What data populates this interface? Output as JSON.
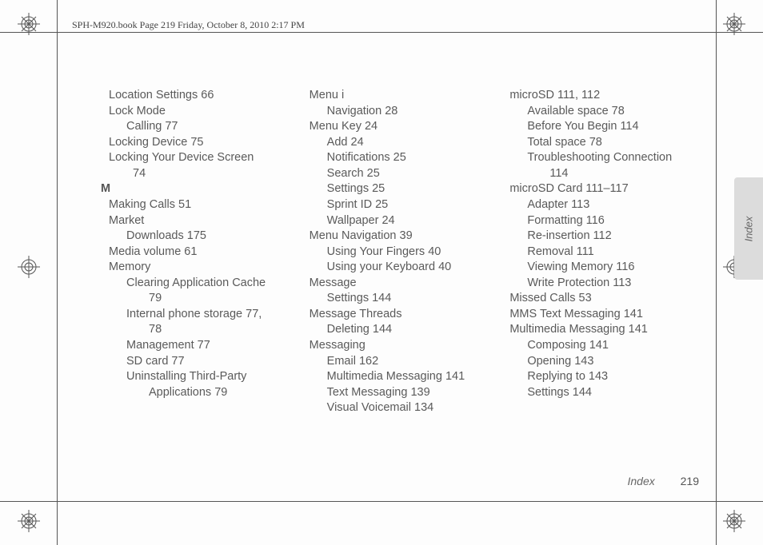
{
  "header": "SPH-M920.book  Page 219  Friday, October 8, 2010  2:17 PM",
  "sideTab": "Index",
  "footer": {
    "label": "Index",
    "page": "219"
  },
  "columns": [
    [
      {
        "cls": "l0",
        "text": "Location Settings 66"
      },
      {
        "cls": "l0",
        "text": "Lock Mode"
      },
      {
        "cls": "l1",
        "text": "Calling 77"
      },
      {
        "cls": "l0",
        "text": "Locking Device 75"
      },
      {
        "cls": "l0",
        "text": "Locking Your Device Screen"
      },
      {
        "cls": "cont1",
        "text": "74"
      },
      {
        "cls": "letter",
        "text": "M"
      },
      {
        "cls": "l0",
        "text": "Making Calls 51"
      },
      {
        "cls": "l0",
        "text": "Market"
      },
      {
        "cls": "l1",
        "text": "Downloads 175"
      },
      {
        "cls": "l0",
        "text": "Media volume 61"
      },
      {
        "cls": "l0",
        "text": "Memory"
      },
      {
        "cls": "l1",
        "text": "Clearing Application Cache"
      },
      {
        "cls": "cont2",
        "text": "79"
      },
      {
        "cls": "l1",
        "text": "Internal phone storage 77,"
      },
      {
        "cls": "cont2",
        "text": "78"
      },
      {
        "cls": "l1",
        "text": "Management 77"
      },
      {
        "cls": "l1",
        "text": "SD card 77"
      },
      {
        "cls": "l1",
        "text": "Uninstalling Third-Party"
      },
      {
        "cls": "cont2",
        "text": "Applications 79"
      }
    ],
    [
      {
        "cls": "l0",
        "text": "Menu i"
      },
      {
        "cls": "l1",
        "text": "Navigation 28"
      },
      {
        "cls": "l0",
        "text": "Menu Key 24"
      },
      {
        "cls": "l1",
        "text": "Add 24"
      },
      {
        "cls": "l1",
        "text": "Notifications 25"
      },
      {
        "cls": "l1",
        "text": "Search 25"
      },
      {
        "cls": "l1",
        "text": "Settings 25"
      },
      {
        "cls": "l1",
        "text": "Sprint ID 25"
      },
      {
        "cls": "l1",
        "text": "Wallpaper 24"
      },
      {
        "cls": "l0",
        "text": "Menu Navigation 39"
      },
      {
        "cls": "l1",
        "text": "Using Your Fingers 40"
      },
      {
        "cls": "l1",
        "text": "Using your Keyboard 40"
      },
      {
        "cls": "l0",
        "text": "Message"
      },
      {
        "cls": "l1",
        "text": "Settings 144"
      },
      {
        "cls": "l0",
        "text": "Message Threads"
      },
      {
        "cls": "l1",
        "text": "Deleting 144"
      },
      {
        "cls": "l0",
        "text": "Messaging"
      },
      {
        "cls": "l1",
        "text": "Email 162"
      },
      {
        "cls": "l1",
        "text": "Multimedia Messaging 141"
      },
      {
        "cls": "l1",
        "text": "Text Messaging 139"
      },
      {
        "cls": "l1",
        "text": "Visual Voicemail 134"
      }
    ],
    [
      {
        "cls": "l0",
        "text": "microSD 111, 112"
      },
      {
        "cls": "l1",
        "text": "Available space 78"
      },
      {
        "cls": "l1",
        "text": "Before You Begin 114"
      },
      {
        "cls": "l1",
        "text": "Total space 78"
      },
      {
        "cls": "l1",
        "text": "Troubleshooting Connection"
      },
      {
        "cls": "cont2",
        "text": "114"
      },
      {
        "cls": "l0",
        "text": "microSD Card 111–117"
      },
      {
        "cls": "l1",
        "text": "Adapter 113"
      },
      {
        "cls": "l1",
        "text": "Formatting 116"
      },
      {
        "cls": "l1",
        "text": "Re-insertion 112"
      },
      {
        "cls": "l1",
        "text": "Removal 111"
      },
      {
        "cls": "l1",
        "text": "Viewing Memory 116"
      },
      {
        "cls": "l1",
        "text": "Write Protection 113"
      },
      {
        "cls": "l0",
        "text": "Missed Calls 53"
      },
      {
        "cls": "l0",
        "text": "MMS Text Messaging 141"
      },
      {
        "cls": "l0",
        "text": "Multimedia Messaging 141"
      },
      {
        "cls": "l1",
        "text": "Composing 141"
      },
      {
        "cls": "l1",
        "text": "Opening 143"
      },
      {
        "cls": "l1",
        "text": "Replying to 143"
      },
      {
        "cls": "l1",
        "text": "Settings 144"
      }
    ]
  ]
}
